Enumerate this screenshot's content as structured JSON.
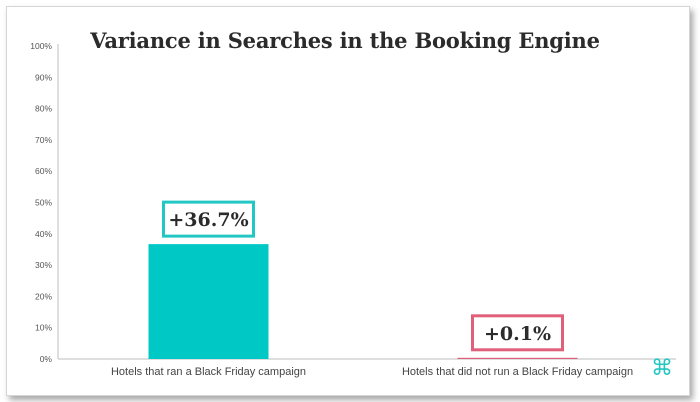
{
  "chart_data": {
    "type": "bar",
    "title": "Variance in Searches in the Booking Engine",
    "categories": [
      "Hotels that ran a Black Friday campaign",
      "Hotels that did not run a Black Friday campaign"
    ],
    "values": [
      36.7,
      0.1
    ],
    "data_labels": [
      "+36.7%",
      "+0.1%"
    ],
    "ylim": [
      0,
      100
    ],
    "yticks": [
      "0%",
      "10%",
      "20%",
      "30%",
      "40%",
      "50%",
      "60%",
      "70%",
      "80%",
      "90%",
      "100%"
    ],
    "colors": [
      "#00c8c4",
      "#e0607a"
    ],
    "label_border_colors": [
      "#22c7c3",
      "#e0607a"
    ],
    "grid": false
  },
  "logo": {
    "icon": "command-key-icon",
    "glyph": "⌘",
    "color": "#22c7c3"
  }
}
